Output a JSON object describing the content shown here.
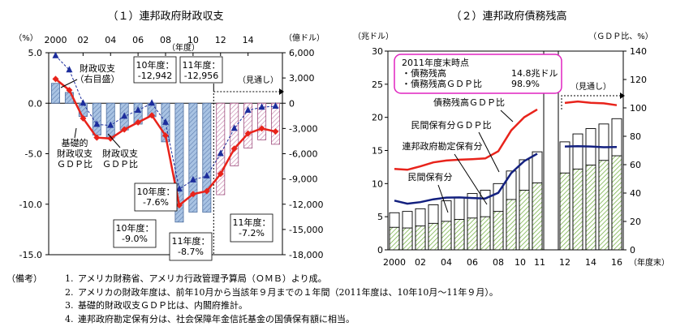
{
  "chart_data": [
    {
      "type": "bar",
      "title": "（１）連邦政府財政収支",
      "left_axis_unit": "（%）",
      "right_axis_unit": "（億ドル）",
      "year_label": "（年度）",
      "forecast_label": "（見通し）",
      "x_ticks": [
        "2000",
        "02",
        "04",
        "06",
        "08",
        "10",
        "12",
        "14"
      ],
      "left_ticks": [
        "5.0",
        "0.0",
        "-5.0",
        "-10.0",
        "-15.0"
      ],
      "right_ticks": [
        "6,000",
        "3,000",
        "0",
        "-3,000",
        "-6,000",
        "-9,000",
        "-12,000",
        "-15,000",
        "-18,000"
      ],
      "ylim_left": [
        -15,
        5
      ],
      "ylim_right": [
        -18000,
        6000
      ],
      "years": [
        2000,
        2001,
        2002,
        2003,
        2004,
        2005,
        2006,
        2007,
        2008,
        2009,
        2010,
        2011,
        2012,
        2013,
        2014,
        2015,
        2016
      ],
      "forecast_from": 2012,
      "series": [
        {
          "name": "財政収支（右目盛）",
          "kind": "bar",
          "axis": "right",
          "values": [
            2362,
            1282,
            -1578,
            -3776,
            -4128,
            -3183,
            -2482,
            -1607,
            -4589,
            -14127,
            -12942,
            -12956,
            -10870,
            -7440,
            -5330,
            -4350,
            -4880
          ]
        },
        {
          "name": "財政収支ＧＤＰ比",
          "kind": "line",
          "axis": "left",
          "values": [
            2.4,
            1.3,
            -1.5,
            -3.4,
            -3.5,
            -2.6,
            -1.9,
            -1.2,
            -3.2,
            -10.1,
            -9.0,
            -8.7,
            -7.0,
            -4.5,
            -3.0,
            -2.5,
            -2.8
          ]
        },
        {
          "name": "基礎的財政収支ＧＤＰ比",
          "kind": "line",
          "axis": "left",
          "values": [
            4.7,
            3.3,
            0.0,
            -2.1,
            -2.2,
            -1.3,
            -0.7,
            0.0,
            -1.9,
            -8.5,
            -7.6,
            -7.2,
            -5.0,
            -2.5,
            -0.7,
            -0.4,
            -0.3
          ]
        }
      ],
      "annotations": {
        "bar_label": "財政収支\n（右目盛）",
        "ratio_label": "財政収支\nＧＤＰ比",
        "primary_label": "基礎的\n財政収支\nＧＤＰ比",
        "box_fy10_bal": "10年度：\n-12,942",
        "box_fy11_bal": "11年度：\n-12,956",
        "box_fy10_primary": "10年度：\n-7.6%",
        "box_fy10_ratio": "10年度：\n-9.0%",
        "box_fy11_ratio": "11年度：\n-8.7%",
        "box_fy11_primary": "11年度：\n-7.2%"
      }
    },
    {
      "type": "bar",
      "title": "（２）連邦政府債務残高",
      "left_axis_unit": "（兆ドル）",
      "right_axis_unit": "（ＧＤＰ比、%）",
      "x_axis_unit": "（年度末）",
      "forecast_label": "（見通し）",
      "x_ticks": [
        "2000",
        "02",
        "04",
        "06",
        "08",
        "10",
        "11",
        "12",
        "14",
        "16"
      ],
      "left_ticks": [
        "30",
        "25",
        "20",
        "15",
        "10",
        "5",
        "0"
      ],
      "right_ticks": [
        "140",
        "120",
        "100",
        "80",
        "60",
        "40",
        "20",
        "0"
      ],
      "ylim_left": [
        0,
        30
      ],
      "ylim_right": [
        0,
        140
      ],
      "years": [
        2000,
        2001,
        2002,
        2003,
        2004,
        2005,
        2006,
        2007,
        2008,
        2009,
        2010,
        2011,
        2012,
        2013,
        2014,
        2015,
        2016
      ],
      "forecast_from": 2012,
      "series": [
        {
          "name": "債務残高",
          "kind": "bar_outline",
          "axis": "left",
          "values": [
            5.6,
            5.8,
            6.2,
            6.8,
            7.4,
            7.9,
            8.5,
            9.0,
            10.0,
            11.9,
            13.6,
            14.8,
            16.3,
            17.5,
            18.3,
            19.0,
            19.8
          ]
        },
        {
          "name": "民間保有分",
          "kind": "bar_hatched",
          "axis": "left",
          "values": [
            3.4,
            3.3,
            3.6,
            4.0,
            4.3,
            4.6,
            4.8,
            5.0,
            5.8,
            7.6,
            9.0,
            10.1,
            11.6,
            12.2,
            12.8,
            13.5,
            14.2
          ]
        },
        {
          "name": "債務残高ＧＤＰ比",
          "kind": "line",
          "axis": "right",
          "values": [
            57.0,
            56.4,
            58.8,
            61.6,
            62.9,
            63.5,
            63.9,
            64.4,
            69.4,
            84.2,
            93.4,
            98.9,
            103.5,
            104.5,
            103.6,
            103.2,
            101.9
          ]
        },
        {
          "name": "民間保有分ＧＤＰ比",
          "kind": "line",
          "axis": "right",
          "values": [
            34.7,
            32.5,
            33.6,
            35.6,
            36.8,
            36.9,
            36.5,
            36.2,
            40.2,
            54.1,
            62.5,
            67.7,
            72.8,
            73.0,
            72.8,
            72.3,
            72.4
          ]
        }
      ],
      "annotations": {
        "info_title": "2011年度末時点",
        "info_row1_label": "・債務残高",
        "info_row1_value": "14.8兆ドル",
        "info_row2_label": "・債務残高ＧＤＰ比",
        "info_row2_value": "98.9%",
        "lbl_debt_ratio": "債務残高ＧＤＰ比",
        "lbl_private_ratio": "民間保有分ＧＤＰ比",
        "lbl_total_debt": "連邦政府勘定保有分",
        "lbl_private": "民間保有分"
      }
    }
  ],
  "notes": {
    "label": "（備考）",
    "items": [
      {
        "num": "1.",
        "text": "アメリカ財務省、アメリカ行政管理予算局（ＯＭＢ）より成。"
      },
      {
        "num": "2.",
        "text": "アメリカの財政年度は、前年10月から当該年９月までの１年間（2011年度は、10年10月～11年９月）。"
      },
      {
        "num": "3.",
        "text": "基礎的財政収支ＧＤＰ比は、内閣府推計。"
      },
      {
        "num": "4.",
        "text": "連邦政府勘定保有分は、社会保障年金信託基金の国債保有額に相当。"
      }
    ]
  }
}
